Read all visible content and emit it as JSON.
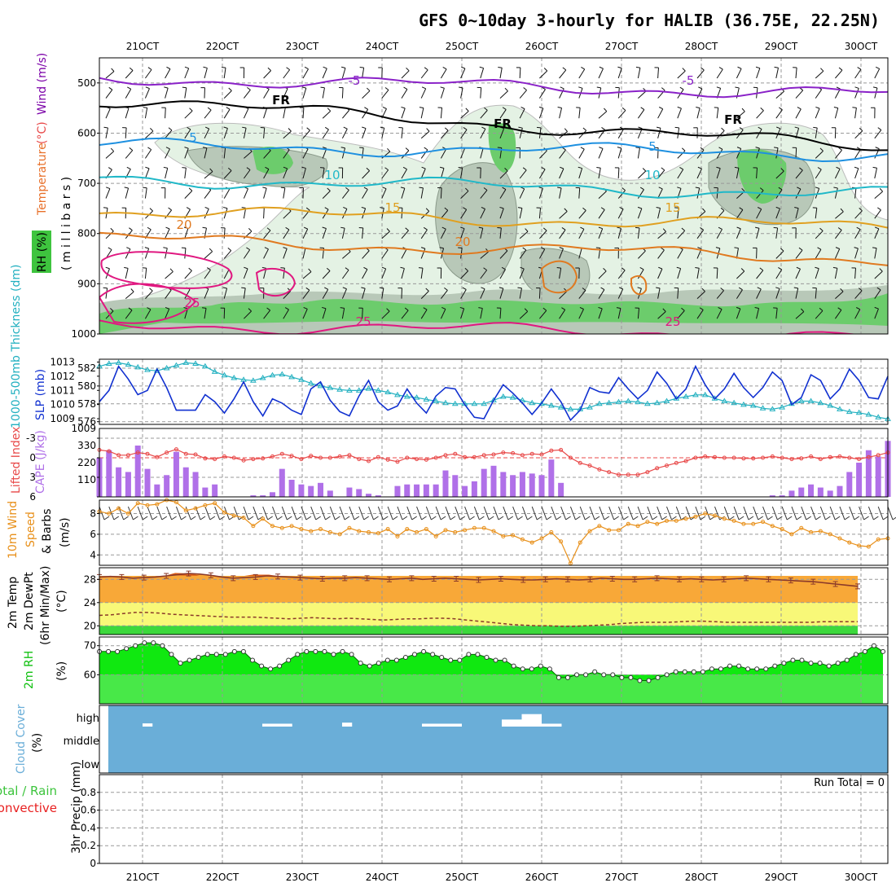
{
  "title": "GFS 0~10day 3-hourly for HALIB (36.75E, 22.25N)",
  "dates": [
    "21OCT",
    "22OCT",
    "23OCT",
    "24OCT",
    "25OCT",
    "26OCT",
    "27OCT",
    "28OCT",
    "29OCT",
    "30OCT"
  ],
  "labels": {
    "upper": {
      "rh": "RH (%)",
      "temp": "Temperature",
      "temp_unit": "(°C)",
      "wind": "Wind (m/s)",
      "mb": "( m i l l i b a r s )"
    },
    "thick": "1000-500mb Thickness (dm)",
    "slp": "SLP (mb)",
    "li": "Lifted Index",
    "cape": "CAPE (J/kg)",
    "wind10_a": "10m Wind",
    "wind10_b": "Speed",
    "wind10_c": "& Barbs",
    "wind10_unit": "(m/s)",
    "t2_a": "2m Temp",
    "t2_b": "2m DewPt",
    "t2_c": "(6hr Min/Max)",
    "t2_unit": "(°C)",
    "rh2_a": "2m RH",
    "rh2_unit": "(%)",
    "cloud_a": "Cloud Cover",
    "cloud_unit": "(%)",
    "cloud_high": "high",
    "cloud_mid": "middle",
    "cloud_low": "low",
    "precip_a": "Total / Rain",
    "precip_b": "Convective",
    "precip_unit": "3hr Precip (mm)",
    "run_total": "Run Total = 0"
  },
  "colors": {
    "temp_label": "#e8702a",
    "rh_label": "#3ec43e",
    "wind_label": "#7b00a8",
    "thick": "#22b0c0",
    "slp": "#1030d0",
    "li": "#e84848",
    "cape": "#b070e8",
    "wind10": "#e8901a",
    "cloud": "#6aaed8",
    "rh2": "#10e810",
    "precip_total": "#3cc43c",
    "precip_conv": "#e82020"
  },
  "chart_data": [
    {
      "panel": "upper-air",
      "type": "area",
      "ylabel": "( m i l l i b a r s )",
      "y_ticks": [
        500,
        600,
        700,
        800,
        900,
        1000
      ],
      "ylim": [
        450,
        1000
      ],
      "contours": [
        {
          "name": "-5",
          "level_mb": 490,
          "color": "#8a22c8"
        },
        {
          "name": "FR",
          "level_mb": 565,
          "color": "#000000"
        },
        {
          "name": "5",
          "level_mb": 625,
          "color": "#1e90e0"
        },
        {
          "name": "10",
          "level_mb": 690,
          "color": "#20b8c8"
        },
        {
          "name": "15",
          "level_mb": 755,
          "color": "#e0a020"
        },
        {
          "name": "20",
          "level_mb": 810,
          "color": "#e07a20"
        },
        {
          "name": "25",
          "level_mb": 980,
          "color": "#e01880"
        }
      ],
      "contour_labels": [
        "-5",
        "-5",
        "FR",
        "FR",
        "FR",
        "5",
        "5",
        "10",
        "10",
        "15",
        "15",
        "20",
        "20",
        "25",
        "25",
        "25"
      ]
    },
    {
      "panel": "thickness-slp",
      "type": "line",
      "ylabel_left": "1000-500mb Thickness (dm)",
      "ylabel_right": "SLP (mb)",
      "left_ticks": [
        576,
        578,
        580,
        582
      ],
      "right_ticks": [
        1009,
        1010,
        1011,
        1012,
        1013
      ],
      "series": [
        {
          "name": "1000-500mb Thickness (dm)",
          "axis": "left",
          "values": [
            582.2,
            582.5,
            582.6,
            582.4,
            582.1,
            581.8,
            581.7,
            582.0,
            582.3,
            582.6,
            582.5,
            582.2,
            581.6,
            581.2,
            580.9,
            580.7,
            580.6,
            580.9,
            581.2,
            581.3,
            581.0,
            580.7,
            580.3,
            580.0,
            579.8,
            579.6,
            579.5,
            579.5,
            579.7,
            579.5,
            579.3,
            579.0,
            578.8,
            578.7,
            578.5,
            578.3,
            578.1,
            578.0,
            578.0,
            578.0,
            578.0,
            578.4,
            578.8,
            578.7,
            578.4,
            578.1,
            578.0,
            577.8,
            577.6,
            577.4,
            577.4,
            577.6,
            578.0,
            578.1,
            578.2,
            578.3,
            578.2,
            578.0,
            578.1,
            578.3,
            578.6,
            578.8,
            579.0,
            579.0,
            578.6,
            578.3,
            578.1,
            577.9,
            577.8,
            577.5,
            577.4,
            577.6,
            578.0,
            578.3,
            578.3,
            578.1,
            577.8,
            577.4,
            577.1,
            577.0,
            576.8,
            576.5,
            576.3
          ]
        },
        {
          "name": "SLP (mb)",
          "axis": "right",
          "values": [
            1010.2,
            1011.0,
            1012.7,
            1011.8,
            1010.7,
            1011.0,
            1012.5,
            1011.2,
            1009.6,
            1009.6,
            1009.6,
            1010.7,
            1010.2,
            1009.4,
            1010.4,
            1011.6,
            1010.2,
            1009.2,
            1010.4,
            1010.1,
            1009.6,
            1009.3,
            1011.1,
            1011.6,
            1010.3,
            1009.5,
            1009.2,
            1010.6,
            1011.7,
            1010.2,
            1009.6,
            1009.9,
            1011.1,
            1010.1,
            1009.4,
            1010.6,
            1011.2,
            1011.1,
            1010.0,
            1009.1,
            1009.0,
            1010.3,
            1011.4,
            1010.8,
            1010.1,
            1009.3,
            1010.1,
            1011.1,
            1010.2,
            1008.9,
            1009.6,
            1011.2,
            1010.9,
            1010.8,
            1011.9,
            1011.1,
            1010.4,
            1011.0,
            1012.3,
            1011.5,
            1010.4,
            1011.1,
            1012.7,
            1011.4,
            1010.4,
            1011.1,
            1012.2,
            1011.2,
            1010.5,
            1011.2,
            1012.3,
            1011.7,
            1010.0,
            1010.5,
            1012.1,
            1011.7,
            1010.4,
            1011.1,
            1012.5,
            1011.7,
            1010.5,
            1010.4,
            1012.0
          ]
        }
      ]
    },
    {
      "panel": "lifted-index-cape",
      "type": "bar",
      "ylabel_left": "Lifted Index",
      "ylabel_right": "CAPE (J/kg)",
      "li_ticks": [
        -3,
        0,
        3,
        6
      ],
      "cape_ticks": [
        110,
        220,
        330
      ],
      "series": [
        {
          "name": "CAPE (J/kg)",
          "axis": "right",
          "values": [
            250,
            300,
            190,
            160,
            330,
            180,
            80,
            140,
            290,
            190,
            160,
            60,
            80,
            0,
            0,
            0,
            10,
            10,
            30,
            180,
            110,
            80,
            70,
            90,
            40,
            0,
            60,
            50,
            20,
            10,
            0,
            70,
            80,
            80,
            80,
            80,
            170,
            140,
            70,
            100,
            180,
            200,
            160,
            140,
            160,
            150,
            140,
            240,
            90,
            0,
            0,
            0,
            0,
            0,
            0,
            0,
            0,
            0,
            0,
            0,
            0,
            0,
            0,
            0,
            0,
            0,
            0,
            0,
            0,
            0,
            10,
            10,
            40,
            60,
            80,
            60,
            40,
            70,
            160,
            220,
            300,
            260,
            360
          ]
        },
        {
          "name": "Lifted Index",
          "axis": "left",
          "values": [
            -1.2,
            -1.0,
            -0.4,
            -0.4,
            -0.8,
            -0.6,
            -0.1,
            -0.8,
            -1.3,
            -0.6,
            -0.5,
            0.1,
            0.2,
            -0.2,
            0.0,
            0.4,
            0.2,
            0.1,
            -0.2,
            -0.6,
            -0.3,
            0.2,
            -0.3,
            0.0,
            0.0,
            -0.2,
            -0.4,
            0.2,
            0.5,
            -0.1,
            0.3,
            0.6,
            0.0,
            0.2,
            0.3,
            0.0,
            -0.4,
            -0.6,
            -0.1,
            -0.1,
            -0.4,
            -0.5,
            -0.8,
            -0.7,
            -0.4,
            -0.6,
            -0.5,
            -1.1,
            -1.2,
            0.0,
            0.8,
            1.2,
            1.8,
            2.2,
            2.6,
            2.6,
            2.6,
            2.2,
            1.6,
            1.2,
            0.8,
            0.5,
            0.0,
            -0.2,
            -0.1,
            0.0,
            0.0,
            0.1,
            0.1,
            0.0,
            -0.2,
            0.0,
            0.2,
            0.1,
            -0.2,
            0.2,
            -0.1,
            -0.2,
            0.0,
            0.2,
            -0.1,
            -0.4,
            -0.8
          ]
        }
      ]
    },
    {
      "panel": "10m-wind",
      "type": "line",
      "ylabel": "10m Wind Speed & Barbs (m/s)",
      "y_ticks": [
        4,
        6,
        8
      ],
      "ylim": [
        3,
        9.3
      ],
      "series": [
        {
          "name": "10m Wind Speed",
          "values": [
            8.2,
            8.0,
            8.5,
            8.0,
            9.0,
            8.8,
            8.9,
            9.3,
            9.1,
            8.3,
            8.5,
            8.8,
            9.0,
            8.1,
            7.8,
            7.6,
            6.8,
            7.5,
            6.8,
            6.6,
            6.8,
            6.5,
            6.3,
            6.5,
            6.2,
            6.0,
            6.6,
            6.3,
            6.2,
            6.1,
            6.5,
            5.8,
            6.5,
            6.2,
            6.5,
            5.8,
            6.4,
            6.2,
            6.4,
            6.6,
            6.6,
            6.3,
            5.8,
            5.9,
            5.5,
            5.2,
            5.6,
            6.2,
            5.3,
            3.2,
            5.2,
            6.3,
            6.8,
            6.4,
            6.4,
            7.0,
            6.8,
            7.2,
            7.0,
            7.3,
            7.3,
            7.5,
            7.7,
            8.0,
            7.8,
            7.5,
            7.3,
            7.0,
            7.0,
            7.2,
            6.8,
            6.5,
            6.0,
            6.6,
            6.2,
            6.3,
            6.0,
            5.6,
            5.2,
            4.9,
            4.8,
            5.5,
            5.6
          ]
        }
      ]
    },
    {
      "panel": "2m-temp-dewpoint",
      "type": "area",
      "ylabel": "2m Temp 2m DewPt (6hr Min/Max) (°C)",
      "y_ticks": [
        20,
        24,
        28
      ],
      "ylim": [
        18.5,
        30
      ],
      "series": [
        {
          "name": "2m Temp",
          "values": [
            28.4,
            28.5,
            28.4,
            28.2,
            28.3,
            28.4,
            28.6,
            28.8,
            29.0,
            28.9,
            28.7,
            28.4,
            28.2,
            28.3,
            28.4,
            28.6,
            28.5,
            28.4,
            28.3,
            28.2,
            28.1,
            28.2,
            28.2,
            28.3,
            28.2,
            28.1,
            28.0,
            28.1,
            28.2,
            28.0,
            28.1,
            28.2,
            28.1,
            28.0,
            27.9,
            28.0,
            28.1,
            28.0,
            27.9,
            27.9,
            28.0,
            28.1,
            28.0,
            27.9,
            28.0,
            28.2,
            28.1,
            28.0,
            28.0,
            28.1,
            28.2,
            28.1,
            28.0,
            28.1,
            28.0,
            27.9,
            28.0,
            28.1,
            28.2,
            28.1,
            28.0,
            27.9,
            27.8,
            27.7,
            27.6,
            27.4,
            27.2,
            27.0,
            26.8
          ]
        },
        {
          "name": "2m DewPt",
          "values": [
            21.8,
            21.9,
            22.1,
            22.3,
            22.3,
            22.2,
            22.0,
            21.9,
            21.8,
            21.7,
            21.6,
            21.5,
            21.5,
            21.5,
            21.4,
            21.3,
            21.2,
            21.3,
            21.4,
            21.3,
            21.2,
            21.3,
            21.2,
            21.1,
            21.0,
            21.1,
            21.2,
            21.2,
            21.3,
            21.3,
            21.2,
            21.0,
            20.8,
            20.6,
            20.4,
            20.2,
            20.1,
            20.0,
            20.0,
            19.9,
            19.9,
            20.0,
            20.1,
            20.2,
            20.4,
            20.5,
            20.6,
            20.6,
            20.6,
            20.7,
            20.8,
            20.8,
            20.7,
            20.6,
            20.6,
            20.6,
            20.6,
            20.6,
            20.6,
            20.6,
            20.6,
            20.7,
            20.7,
            20.7,
            20.7
          ]
        }
      ]
    },
    {
      "panel": "2m-rh",
      "type": "area",
      "ylabel": "2m RH (%)",
      "y_ticks": [
        60,
        70
      ],
      "ylim": [
        50,
        73
      ],
      "series": [
        {
          "name": "2m RH",
          "values": [
            68,
            68,
            68,
            69,
            70,
            71,
            71,
            70,
            67,
            64,
            65,
            66,
            67,
            67,
            67,
            68,
            68,
            65,
            63,
            62,
            63,
            65,
            67,
            68,
            68,
            68,
            67,
            68,
            67,
            64,
            63,
            64,
            65,
            65,
            66,
            67,
            68,
            67,
            66,
            65,
            65,
            67,
            67,
            66,
            65,
            65,
            63,
            62,
            62,
            63,
            62,
            59,
            59,
            60,
            60,
            61,
            60,
            60,
            59,
            59,
            58,
            58,
            59,
            60,
            61,
            61,
            61,
            61,
            62,
            62,
            63,
            63,
            62,
            62,
            62,
            63,
            64,
            65,
            65,
            64,
            64,
            63,
            64,
            65,
            67,
            68,
            70,
            68
          ]
        }
      ]
    },
    {
      "panel": "cloud-cover",
      "type": "bar",
      "ylabel": "Cloud Cover (%)",
      "categories": [
        "high",
        "middle",
        "low"
      ],
      "series": [
        {
          "name": "high",
          "events": [
            {
              "start": "21OCT 00Z",
              "end": "21OCT 03Z",
              "pct": 10
            },
            {
              "start": "22OCT 12Z",
              "end": "22OCT 21Z",
              "pct": 8
            },
            {
              "start": "23OCT 12Z",
              "end": "23OCT 15Z",
              "pct": 15
            },
            {
              "start": "24OCT 12Z",
              "end": "25OCT 00Z",
              "pct": 8
            },
            {
              "start": "25OCT 12Z",
              "end": "25OCT 18Z",
              "pct": 35
            },
            {
              "start": "25OCT 18Z",
              "end": "26OCT 00Z",
              "pct": 70
            },
            {
              "start": "26OCT 00Z",
              "end": "26OCT 06Z",
              "pct": 8
            }
          ]
        },
        {
          "name": "middle",
          "events": []
        },
        {
          "name": "low",
          "events": []
        }
      ]
    },
    {
      "panel": "precip",
      "type": "bar",
      "ylabel": "3hr Precip (mm)",
      "y_ticks": [
        0,
        0.2,
        0.4,
        0.6,
        0.8
      ],
      "ylim": [
        0,
        1.0
      ],
      "series": [
        {
          "name": "Total / Rain",
          "values": []
        },
        {
          "name": "Convective",
          "values": []
        }
      ],
      "annotation": "Run Total = 0"
    }
  ]
}
